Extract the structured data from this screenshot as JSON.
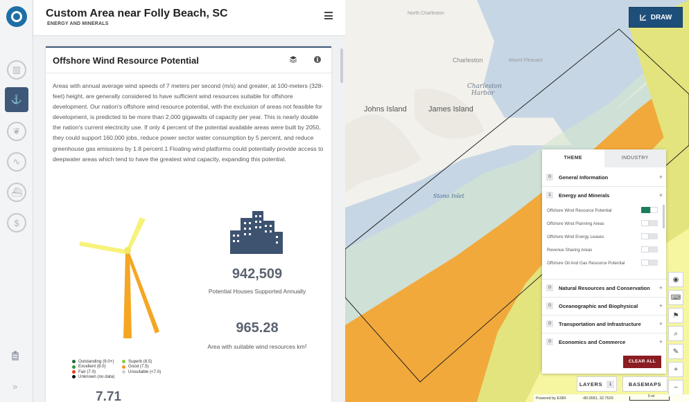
{
  "header": {
    "title": "Custom Area near Folly Beach, SC",
    "subtitle": "ENERGY AND MINERALS"
  },
  "rail": {
    "items": [
      {
        "icon": "bar-chart-icon",
        "glyph": "▥"
      },
      {
        "icon": "wind-turbine-icon",
        "glyph": "⚓",
        "active": true
      },
      {
        "icon": "plant-icon",
        "glyph": "❦"
      },
      {
        "icon": "wave-icon",
        "glyph": "∿"
      },
      {
        "icon": "ship-icon",
        "glyph": "⛴"
      },
      {
        "icon": "money-icon",
        "glyph": "$"
      }
    ],
    "bottom_icons": [
      "clipboard-icon",
      "expand-icon"
    ],
    "expand_glyph": "»"
  },
  "card": {
    "title": "Offshore Wind Resource Potential",
    "description": "Areas with annual average wind speeds of 7 meters per second (m/s) and greater, at 100-meters (328-feet) height, are generally considered to have sufficient wind resources suitable for offshore development. Our nation's offshore wind resource potential, with the exclusion of areas not feasible for development, is predicted to be more than 2,000 gigawatts of capacity per year. This is nearly double the nation's current electricity use. If only 4 percent of the potential available areas were built by 2050, they could support 160,000 jobs, reduce power sector water consumption by 5 percent, and reduce greenhouse gas emissions by 1.8 percent.1 Floating wind platforms could potentially provide access to deepwater areas which tend to have the greatest wind capacity, expanding this potential.",
    "stats": [
      {
        "value": "942,509",
        "label": "Potential Houses Supported Annually"
      },
      {
        "value": "965.28",
        "label": "Area with suitable wind resources km²"
      }
    ],
    "bottom_value": "7.71",
    "legend": [
      {
        "label": "Outstanding (9.0+)",
        "color": "#1f6b36"
      },
      {
        "label": "Superb (8.5)",
        "color": "#8dc63f"
      },
      {
        "label": "Excellent (8.0)",
        "color": "#2c9b3a"
      },
      {
        "label": "Good (7.5)",
        "color": "#f7941d"
      },
      {
        "label": "Fair (7.0)",
        "color": "#e8401c"
      },
      {
        "label": "Unsuitable (<7.0)",
        "color": "#cfcfcf"
      },
      {
        "label": "Unknown (no data)",
        "color": "#111111"
      }
    ]
  },
  "map": {
    "draw_label": "DRAW",
    "labels": {
      "north_charleston": "North Charleston",
      "charleston": "Charleston",
      "mount_pleasant": "Mount Pleasant",
      "charleston_harbor_1": "Charleston",
      "charleston_harbor_2": "Harbor",
      "johns_island": "Johns Island",
      "james_island": "James Island",
      "stono_inlet": "Stono Inlet"
    },
    "layers_label": "LAYERS",
    "layers_count": "1",
    "basemaps_label": "BASEMAPS",
    "attribution": "Powered by ESRI",
    "coordinates": "-80.0581, 32.7529",
    "scale_label": "5 mi",
    "colors": {
      "water": "#c7d6e4",
      "good": "#f2a93b",
      "superb": "#e3e47d",
      "unsuitable": "#f6f6a0",
      "land": "#f3f1ec"
    }
  },
  "layer_panel": {
    "tabs": [
      "THEME",
      "INDUSTRY"
    ],
    "groups": [
      {
        "count": "0",
        "label": "General Information",
        "toggle": "+"
      },
      {
        "count": "1",
        "label": "Energy and Minerals",
        "toggle": "×"
      },
      {
        "count": "0",
        "label": "Natural Resources and Conservation",
        "toggle": "+"
      },
      {
        "count": "0",
        "label": "Oceanographic and Biophysical",
        "toggle": "+"
      },
      {
        "count": "0",
        "label": "Transportation and Infrastructure",
        "toggle": "+"
      },
      {
        "count": "0",
        "label": "Economics and Commerce",
        "toggle": "+"
      }
    ],
    "sublayers": [
      {
        "label": "Offshore Wind Resource Potential",
        "on": true
      },
      {
        "label": "Offshore Wind Planning Areas",
        "on": false
      },
      {
        "label": "Offshore Wind Energy Leases",
        "on": false
      },
      {
        "label": "Revenue Sharing Areas",
        "on": false
      },
      {
        "label": "Offshore Oil And Gas Resource Potential",
        "on": false
      }
    ],
    "clear_label": "CLEAR ALL"
  },
  "map_tools": [
    {
      "icon": "locate-icon",
      "glyph": "◉"
    },
    {
      "icon": "keyboard-icon",
      "glyph": "⌨"
    },
    {
      "icon": "map-pin-icon",
      "glyph": "⚑"
    },
    {
      "icon": "search-icon",
      "glyph": "⌕"
    },
    {
      "icon": "ruler-icon",
      "glyph": "✎"
    },
    {
      "icon": "zoom-in-icon",
      "glyph": "+"
    },
    {
      "icon": "zoom-out-icon",
      "glyph": "−"
    }
  ]
}
